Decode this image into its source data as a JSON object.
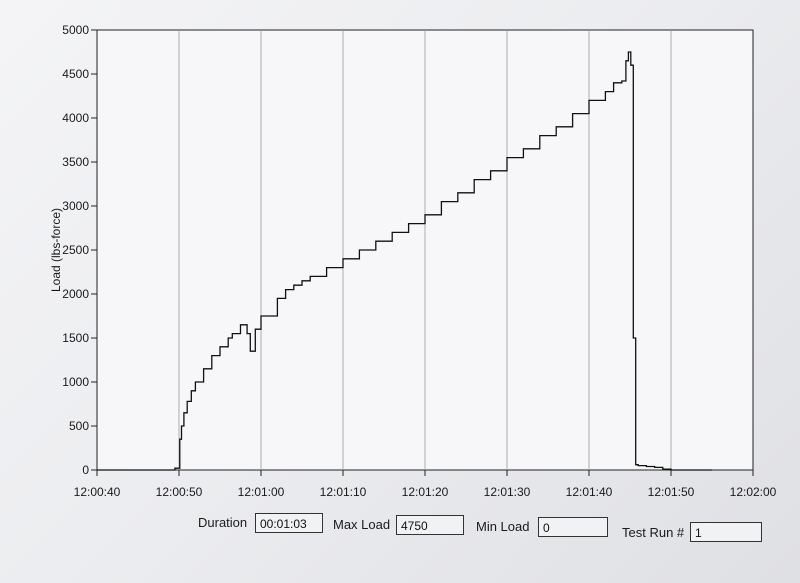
{
  "chart_data": {
    "type": "line",
    "ylabel": "Load (lbs-force)",
    "xlabel": "",
    "x_ticks": [
      "12:00:40",
      "12:00:50",
      "12:01:00",
      "12:01:10",
      "12:01:20",
      "12:01:30",
      "12:01:40",
      "12:01:50",
      "12:02:00"
    ],
    "y_ticks": [
      "0",
      "500",
      "1000",
      "1500",
      "2000",
      "2500",
      "3000",
      "3500",
      "4000",
      "4500",
      "5000"
    ],
    "xlim_seconds": [
      40,
      120
    ],
    "ylim": [
      0,
      5000
    ],
    "grid": "vertical",
    "series": [
      {
        "x_seconds": [
          40,
          48,
          49.5,
          50.1,
          50.3,
          50.6,
          51,
          51.5,
          52,
          53,
          54,
          55,
          56,
          56.5,
          57.5,
          58,
          58.3,
          58.7,
          59.3,
          60,
          61.5,
          62,
          63,
          64,
          65,
          66,
          68,
          70,
          72,
          74,
          76,
          78,
          80,
          82,
          84,
          86,
          88,
          90,
          92,
          94,
          96,
          98,
          100,
          102,
          103,
          103.5,
          104,
          104.5,
          104.8,
          105.1,
          105.4,
          105.7,
          106,
          107,
          108,
          109,
          110,
          111,
          112.5,
          114,
          115
        ],
        "y": [
          0,
          0,
          20,
          350,
          500,
          650,
          780,
          900,
          1000,
          1150,
          1300,
          1400,
          1500,
          1550,
          1650,
          1650,
          1550,
          1350,
          1600,
          1750,
          1750,
          1950,
          2050,
          2100,
          2150,
          2200,
          2300,
          2400,
          2500,
          2600,
          2700,
          2800,
          2900,
          3050,
          3150,
          3300,
          3400,
          3550,
          3650,
          3800,
          3900,
          4050,
          4200,
          4300,
          4400,
          4400,
          4420,
          4650,
          4750,
          4600,
          1500,
          60,
          50,
          40,
          30,
          10,
          0,
          0,
          0,
          0,
          0
        ]
      }
    ]
  },
  "fields": {
    "duration": {
      "label": "Duration",
      "value": "00:01:03"
    },
    "max_load": {
      "label": "Max Load",
      "value": "4750"
    },
    "min_load": {
      "label": "Min Load",
      "value": "0"
    },
    "test_run": {
      "label": "Test Run #",
      "value": "1"
    }
  }
}
